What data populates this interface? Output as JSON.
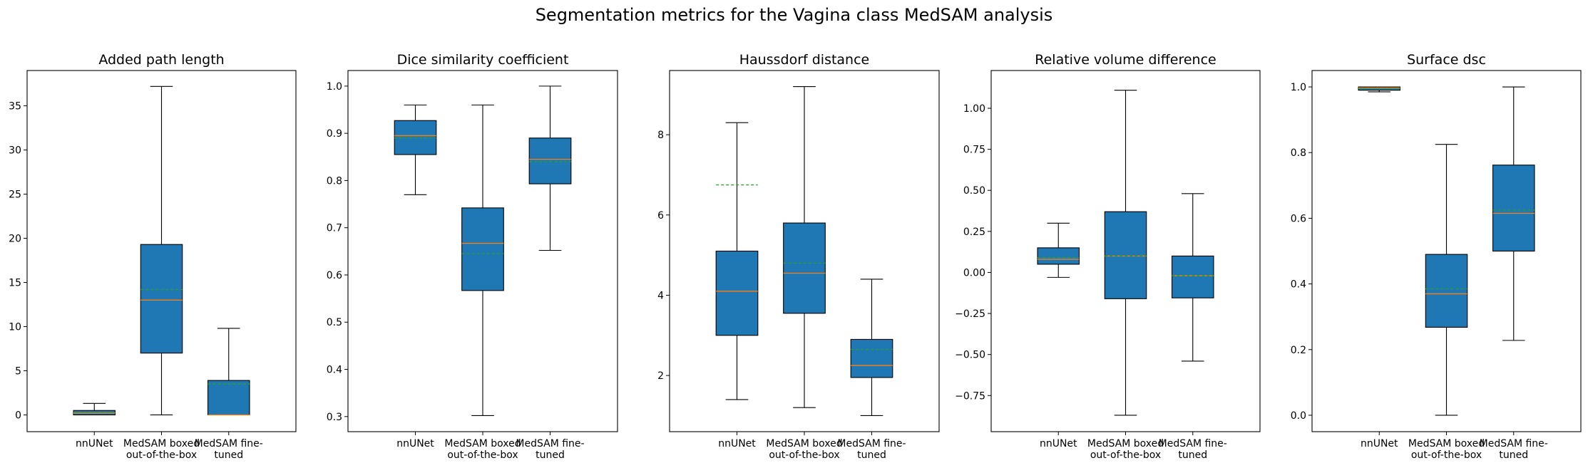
{
  "suptitle": "Segmentation metrics for the Vagina class MedSAM analysis",
  "colors": {
    "box_fill": "#1f77b4",
    "median_line": "#ff7f0e",
    "mean_line": "#2ca02c"
  },
  "chart_data": [
    {
      "type": "boxplot",
      "title": "Added path length",
      "categories": [
        [
          "nnUNet"
        ],
        [
          "MedSAM boxed",
          "out-of-the-box"
        ],
        [
          "MedSAM fine-",
          "tuned"
        ]
      ],
      "ylim": [
        -1.9,
        39.0
      ],
      "yticks": [
        0,
        5,
        10,
        15,
        20,
        25,
        30,
        35
      ],
      "ytick_labels": [
        "0",
        "5",
        "10",
        "15",
        "20",
        "25",
        "30",
        "35"
      ],
      "boxes": [
        {
          "whislo": 0.0,
          "q1": 0.0,
          "median": 0.2,
          "mean": 0.3,
          "q3": 0.5,
          "whishi": 1.3
        },
        {
          "whislo": 0.0,
          "q1": 7.0,
          "median": 13.0,
          "mean": 14.2,
          "q3": 19.3,
          "whishi": 37.2
        },
        {
          "whislo": 0.0,
          "q1": 0.0,
          "median": 0.0,
          "mean": 3.5,
          "q3": 3.9,
          "whishi": 9.8
        }
      ]
    },
    {
      "type": "boxplot",
      "title": "Dice similarity coefficient",
      "categories": [
        [
          "nnUNet"
        ],
        [
          "MedSAM boxed",
          "out-of-the-box"
        ],
        [
          "MedSAM fine-",
          "tuned"
        ]
      ],
      "ylim": [
        0.268,
        1.033
      ],
      "yticks": [
        0.3,
        0.4,
        0.5,
        0.6,
        0.7,
        0.8,
        0.9,
        1.0
      ],
      "ytick_labels": [
        "0.3",
        "0.4",
        "0.5",
        "0.6",
        "0.7",
        "0.8",
        "0.9",
        "1.0"
      ],
      "boxes": [
        {
          "whislo": 0.77,
          "q1": 0.855,
          "median": 0.895,
          "mean": 0.89,
          "q3": 0.927,
          "whishi": 0.96
        },
        {
          "whislo": 0.302,
          "q1": 0.567,
          "median": 0.667,
          "mean": 0.645,
          "q3": 0.742,
          "whishi": 0.96
        },
        {
          "whislo": 0.652,
          "q1": 0.793,
          "median": 0.845,
          "mean": 0.84,
          "q3": 0.89,
          "whishi": 1.0
        }
      ]
    },
    {
      "type": "boxplot",
      "title": "Haussdorf distance",
      "categories": [
        [
          "nnUNet"
        ],
        [
          "MedSAM boxed",
          "out-of-the-box"
        ],
        [
          "MedSAM fine-",
          "tuned"
        ]
      ],
      "ylim": [
        0.6,
        9.6
      ],
      "yticks": [
        2,
        4,
        6,
        8
      ],
      "ytick_labels": [
        "2",
        "4",
        "6",
        "8"
      ],
      "boxes": [
        {
          "whislo": 1.4,
          "q1": 3.0,
          "median": 4.1,
          "mean": 6.75,
          "q3": 5.1,
          "whishi": 8.3
        },
        {
          "whislo": 1.2,
          "q1": 3.55,
          "median": 4.55,
          "mean": 4.8,
          "q3": 5.8,
          "whishi": 9.2
        },
        {
          "whislo": 1.0,
          "q1": 1.95,
          "median": 2.25,
          "mean": 2.65,
          "q3": 2.9,
          "whishi": 4.4
        }
      ]
    },
    {
      "type": "boxplot",
      "title": "Relative volume difference",
      "categories": [
        [
          "nnUNet"
        ],
        [
          "MedSAM boxed",
          "out-of-the-box"
        ],
        [
          "MedSAM fine-",
          "tuned"
        ]
      ],
      "ylim": [
        -0.97,
        1.23
      ],
      "yticks": [
        -0.75,
        -0.5,
        -0.25,
        0.0,
        0.25,
        0.5,
        0.75,
        1.0
      ],
      "ytick_labels": [
        "−0.75",
        "−0.50",
        "−0.25",
        "0.00",
        "0.25",
        "0.50",
        "0.75",
        "1.00"
      ],
      "boxes": [
        {
          "whislo": -0.03,
          "q1": 0.05,
          "median": 0.08,
          "mean": 0.09,
          "q3": 0.15,
          "whishi": 0.3
        },
        {
          "whislo": -0.87,
          "q1": -0.16,
          "median": 0.1,
          "mean": 0.1,
          "q3": 0.37,
          "whishi": 1.11
        },
        {
          "whislo": -0.54,
          "q1": -0.155,
          "median": -0.02,
          "mean": -0.02,
          "q3": 0.1,
          "whishi": 0.48
        }
      ]
    },
    {
      "type": "boxplot",
      "title": "Surface dsc",
      "categories": [
        [
          "nnUNet"
        ],
        [
          "MedSAM boxed",
          "out-of-the-box"
        ],
        [
          "MedSAM fine-",
          "tuned"
        ]
      ],
      "ylim": [
        -0.05,
        1.05
      ],
      "yticks": [
        0.0,
        0.2,
        0.4,
        0.6,
        0.8,
        1.0
      ],
      "ytick_labels": [
        "0.0",
        "0.2",
        "0.4",
        "0.6",
        "0.8",
        "1.0"
      ],
      "boxes": [
        {
          "whislo": 0.985,
          "q1": 0.99,
          "median": 0.997,
          "mean": 0.995,
          "q3": 1.0,
          "whishi": 1.0
        },
        {
          "whislo": 0.0,
          "q1": 0.268,
          "median": 0.37,
          "mean": 0.385,
          "q3": 0.49,
          "whishi": 0.825
        },
        {
          "whislo": 0.228,
          "q1": 0.5,
          "median": 0.615,
          "mean": 0.625,
          "q3": 0.762,
          "whishi": 1.0
        }
      ]
    }
  ]
}
